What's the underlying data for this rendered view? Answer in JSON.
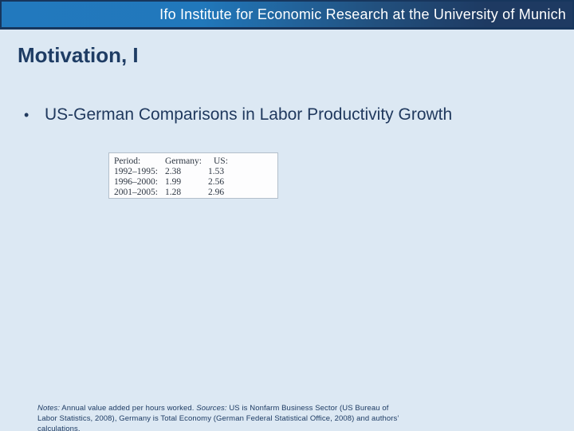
{
  "slide": {
    "header": {
      "text": "Ifo Institute for Economic Research at the University of Munich"
    },
    "title": "Motivation, I",
    "bullet": {
      "marker": "•",
      "text": "US-German Comparisons in Labor Productivity Growth"
    },
    "table": {
      "headers": {
        "period": "Period:",
        "germany": "Germany:",
        "us": "US:"
      },
      "rows": [
        {
          "period": "1992–1995:",
          "germany": "2.38",
          "us": "1.53"
        },
        {
          "period": "1996–2000:",
          "germany": "1.99",
          "us": "2.56"
        },
        {
          "period": "2001–2005:",
          "germany": "1.28",
          "us": "2.96"
        }
      ]
    },
    "notes": {
      "segments": [
        {
          "text": "Notes:",
          "italic": true
        },
        {
          "text": " Annual value added per hours worked. ",
          "italic": false
        },
        {
          "text": "Sources:",
          "italic": true
        },
        {
          "text": " US is Nonfarm Business Sector (US Bureau of Labor Statistics, 2008), Germany is Total Economy (German Federal Statistical Office, 2008) and authors’ calculations.",
          "italic": false
        }
      ]
    },
    "colors": {
      "background": "#dce8f3",
      "bar_blue": "#2279be",
      "bar_navy": "#1e3a62",
      "bar_border": "#17365d",
      "text_navy": "#1e3c64",
      "table_border": "#b3bfcb"
    }
  }
}
